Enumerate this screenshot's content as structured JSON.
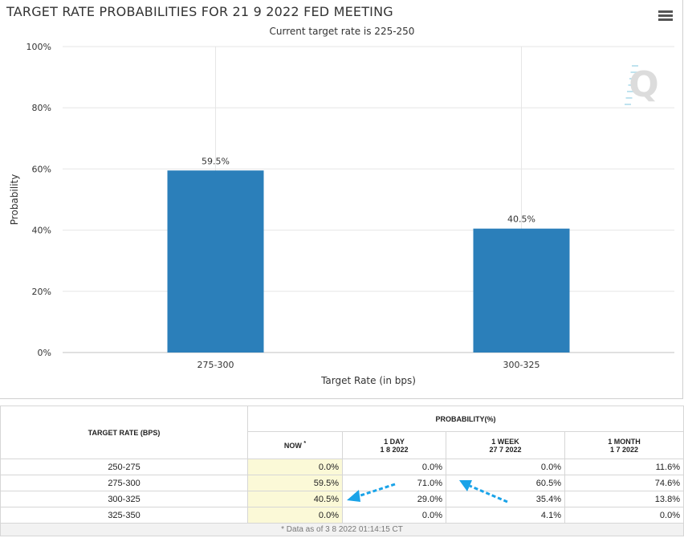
{
  "chart_data": {
    "type": "bar",
    "title": "TARGET RATE PROBABILITIES FOR 21 9 2022 FED MEETING",
    "subtitle": "Current target rate is 225-250",
    "categories": [
      "275-300",
      "300-325"
    ],
    "values": [
      59.5,
      40.5
    ],
    "data_labels": [
      "59.5%",
      "40.5%"
    ],
    "xlabel": "Target Rate (in bps)",
    "ylabel": "Probability",
    "ylim": [
      0,
      100
    ],
    "yticks": [
      0,
      20,
      40,
      60,
      80,
      100
    ],
    "ytick_labels": [
      "0%",
      "20%",
      "40%",
      "60%",
      "80%",
      "100%"
    ],
    "bar_color": "#2b7fba",
    "grid": true,
    "legend": "none"
  },
  "watermark": {
    "letter": "Q"
  },
  "table": {
    "rate_header": "TARGET RATE (BPS)",
    "prob_header": "PROBABILITY(%)",
    "columns": [
      {
        "label": "NOW",
        "sup": "*",
        "date": ""
      },
      {
        "label": "1 DAY",
        "date": "1 8 2022"
      },
      {
        "label": "1 WEEK",
        "date": "27 7 2022"
      },
      {
        "label": "1 MONTH",
        "date": "1 7 2022"
      }
    ],
    "rows": [
      {
        "rate": "250-275",
        "now": "0.0%",
        "day": "0.0%",
        "week": "0.0%",
        "month": "11.6%"
      },
      {
        "rate": "275-300",
        "now": "59.5%",
        "day": "71.0%",
        "week": "60.5%",
        "month": "74.6%"
      },
      {
        "rate": "300-325",
        "now": "40.5%",
        "day": "29.0%",
        "week": "35.4%",
        "month": "13.8%"
      },
      {
        "rate": "325-350",
        "now": "0.0%",
        "day": "0.0%",
        "week": "4.1%",
        "month": "0.0%"
      }
    ],
    "footnote": "* Data as of 3 8 2022 01:14:15 CT"
  },
  "annotation_color": "#1aa3e8"
}
